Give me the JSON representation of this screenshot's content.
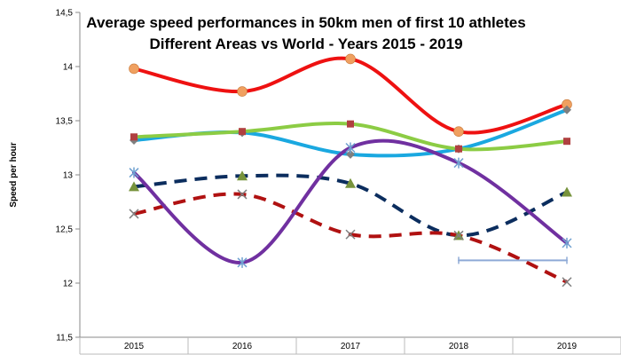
{
  "chart_data": {
    "type": "line",
    "title_lines": [
      "Average speed performances in 50km men of first 10 athletes",
      "Different Areas vs World - Years 2015 - 2019"
    ],
    "xlabel": "",
    "ylabel": "Speed per hour",
    "categories": [
      "2015",
      "2016",
      "2017",
      "2018",
      "2019"
    ],
    "ylim": [
      11.5,
      14.5
    ],
    "yticks": [
      "11,5",
      "12",
      "12,5",
      "13",
      "13,5",
      "14",
      "14,5"
    ],
    "grid": false,
    "legend": "none",
    "series": [
      {
        "color": "#ee1111",
        "style": "solid",
        "marker": "circle",
        "marker_color": "#f0a060",
        "values": [
          13.98,
          13.77,
          14.07,
          13.4,
          13.65
        ]
      },
      {
        "color": "#1aa8e0",
        "style": "solid",
        "marker": "diamond",
        "marker_color": "#7f7f7f",
        "values": [
          13.32,
          13.39,
          13.19,
          13.24,
          13.6
        ]
      },
      {
        "color": "#8ccc44",
        "style": "solid",
        "marker": "square",
        "marker_color": "#b04040",
        "values": [
          13.35,
          13.4,
          13.47,
          13.24,
          13.31
        ]
      },
      {
        "color": "#0b2d5e",
        "style": "dashed",
        "marker": "triangle",
        "marker_color": "#77933c",
        "values": [
          12.89,
          12.99,
          12.92,
          12.44,
          12.84
        ]
      },
      {
        "color": "#b01111",
        "style": "dashed",
        "marker": "x",
        "marker_color": "#7f7f7f",
        "values": [
          12.64,
          12.82,
          12.45,
          12.44,
          12.01
        ]
      },
      {
        "color": "#7030a0",
        "style": "solid",
        "marker": "star",
        "marker_color": "#6fa0d0",
        "values": [
          13.02,
          12.19,
          13.25,
          13.11,
          12.37
        ]
      },
      {
        "color": "#8faad6",
        "style": "solid",
        "marker": "plus",
        "marker_color": "#8faad6",
        "values": [
          null,
          null,
          null,
          12.21,
          12.21
        ]
      }
    ]
  }
}
